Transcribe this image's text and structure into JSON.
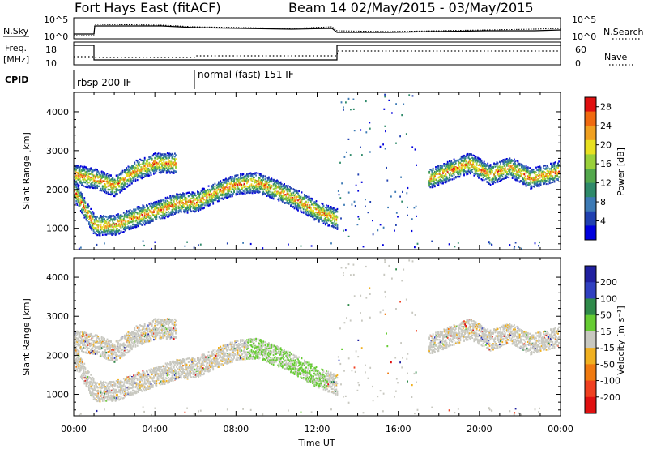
{
  "header": {
    "station": "Fort Hays East (fitACF)",
    "beam_date": "Beam 14 02/May/2015 - 03/May/2015"
  },
  "top_panels": {
    "nsky_label": "N.Sky",
    "nsky_ticks": [
      "10^5",
      "10^0"
    ],
    "nsearch_label": "N.Search",
    "nsearch_ticks": [
      "10^5",
      "10^0"
    ],
    "freq_label_1": "Freq.",
    "freq_label_2": "[MHz]",
    "freq_ticks": [
      "18",
      "10"
    ],
    "nave_label": "Nave",
    "nave_ticks": [
      "60",
      "0"
    ],
    "cpid_label": "CPID",
    "cpid_segments": [
      "rbsp 200 IF",
      "normal (fast) 151 IF"
    ]
  },
  "chart_data": [
    {
      "type": "heatmap",
      "title": "",
      "xlabel": "Time UT",
      "ylabel": "Slant Range [km]",
      "x_ticks": [
        "00:00",
        "04:00",
        "08:00",
        "12:00",
        "16:00",
        "20:00",
        "00:00"
      ],
      "xlim_hours": [
        0,
        24
      ],
      "y_ticks": [
        1000,
        2000,
        3000,
        4000
      ],
      "ylim_km": [
        450,
        4500
      ],
      "colorbar": {
        "label": "Power [dB]",
        "ticks": [
          4,
          8,
          12,
          16,
          20,
          24,
          28
        ],
        "range": [
          0,
          30
        ],
        "colors": [
          "#0000dd",
          "#2040b0",
          "#3d7ab5",
          "#2f8a6a",
          "#53a84c",
          "#9ad03a",
          "#e8e020",
          "#f0a020",
          "#f06a10",
          "#e01010"
        ]
      },
      "bands": [
        {
          "name": "main",
          "points": [
            [
              0.0,
              2000
            ],
            [
              1.0,
              1100
            ],
            [
              2.0,
              1100
            ],
            [
              3.0,
              1300
            ],
            [
              4.0,
              1450
            ],
            [
              5.0,
              1650
            ],
            [
              6.0,
              1700
            ],
            [
              7.0,
              1950
            ],
            [
              8.0,
              2150
            ],
            [
              9.0,
              2200
            ],
            [
              10.0,
              2000
            ],
            [
              11.0,
              1750
            ],
            [
              12.0,
              1450
            ],
            [
              13.0,
              1250
            ]
          ]
        },
        {
          "name": "early-upper",
          "points": [
            [
              0.0,
              2400
            ],
            [
              1.0,
              2300
            ],
            [
              2.0,
              2100
            ],
            [
              3.0,
              2500
            ],
            [
              4.0,
              2700
            ],
            [
              5.0,
              2700
            ]
          ]
        },
        {
          "name": "late",
          "points": [
            [
              17.5,
              2300
            ],
            [
              18.5,
              2500
            ],
            [
              19.5,
              2700
            ],
            [
              20.5,
              2400
            ],
            [
              21.5,
              2600
            ],
            [
              22.5,
              2300
            ],
            [
              24.0,
              2500
            ]
          ]
        }
      ]
    },
    {
      "type": "heatmap",
      "title": "",
      "xlabel": "Time UT",
      "ylabel": "Slant Range [km]",
      "x_ticks": [
        "00:00",
        "04:00",
        "08:00",
        "12:00",
        "16:00",
        "20:00",
        "00:00"
      ],
      "xlim_hours": [
        0,
        24
      ],
      "y_ticks": [
        1000,
        2000,
        3000,
        4000
      ],
      "ylim_km": [
        450,
        4500
      ],
      "colorbar": {
        "label": "Velocity [m s⁻¹]",
        "ticks": [
          200,
          100,
          50,
          15,
          -15,
          -50,
          -100,
          -200
        ],
        "range": [
          -250,
          250
        ],
        "colors": [
          "#e01010",
          "#f04020",
          "#f07a10",
          "#f0b020",
          "#c8c8c0",
          "#66cc33",
          "#2f8a4a",
          "#3040c0",
          "#2020a0"
        ]
      }
    }
  ]
}
